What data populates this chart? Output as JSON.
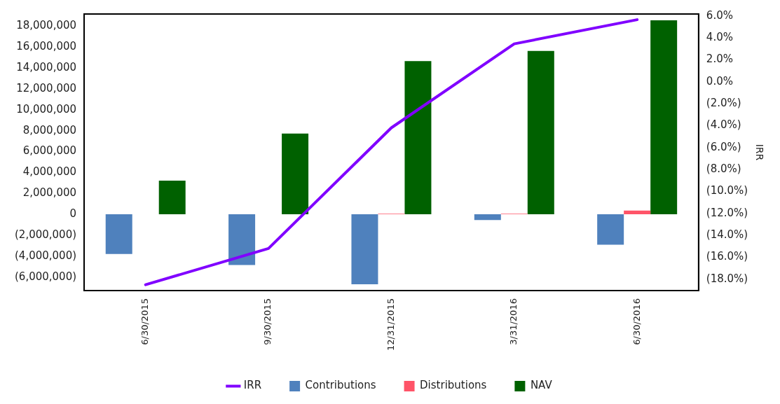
{
  "chart_data": {
    "type": "bar",
    "y2label": "IRR",
    "categories": [
      "6/30/2015",
      "9/30/2015",
      "12/31/2015",
      "3/31/2016",
      "6/30/2016"
    ],
    "series": [
      {
        "name": "Contributions",
        "color": "#4f81bd",
        "values": [
          -3800000,
          -4850000,
          -6700000,
          -550000,
          -2900000
        ]
      },
      {
        "name": "Distributions",
        "color": "#ff5468",
        "values": [
          0,
          0,
          50000,
          50000,
          350000
        ]
      },
      {
        "name": "NAV",
        "color": "#006100",
        "values": [
          3220000,
          7720000,
          14660000,
          15630000,
          18550000
        ]
      },
      {
        "name": "IRR",
        "type": "line",
        "axis": "y2",
        "color": "#8000ff",
        "values": [
          -18.5,
          -15.2,
          -4.2,
          3.45,
          5.65
        ]
      }
    ],
    "ylim": [
      -7300000,
      19160000
    ],
    "yticks": [
      {
        "value": -6000000,
        "label": "(6,000,000)"
      },
      {
        "value": -4000000,
        "label": "(4,000,000)"
      },
      {
        "value": -2000000,
        "label": "(2,000,000)"
      },
      0,
      {
        "value": 2000000,
        "label": "2,000,000"
      },
      {
        "value": 4000000,
        "label": "4,000,000"
      },
      {
        "value": 6000000,
        "label": "6,000,000"
      },
      {
        "value": 8000000,
        "label": "8,000,000"
      },
      {
        "value": 10000000,
        "label": "10,000,000"
      },
      {
        "value": 12000000,
        "label": "12,000,000"
      },
      {
        "value": 14000000,
        "label": "14,000,000"
      },
      {
        "value": 16000000,
        "label": "16,000,000"
      },
      {
        "value": 18000000,
        "label": "18,000,000"
      }
    ],
    "y2lim": [
      -19.04,
      6.17
    ],
    "y2ticks": [
      {
        "value": -18,
        "label": "(18.0%)"
      },
      {
        "value": -16,
        "label": "(16.0%)"
      },
      {
        "value": -14,
        "label": "(14.0%)"
      },
      {
        "value": -12,
        "label": "(12.0%)"
      },
      {
        "value": -10,
        "label": "(10.0%)"
      },
      {
        "value": -8,
        "label": "(8.0%)"
      },
      {
        "value": -6,
        "label": "(6.0%)"
      },
      {
        "value": -4,
        "label": "(4.0%)"
      },
      {
        "value": -2,
        "label": "(2.0%)"
      },
      {
        "value": 0,
        "label": "0.0%"
      },
      {
        "value": 2,
        "label": "2.0%"
      },
      {
        "value": 4,
        "label": "4.0%"
      },
      {
        "value": 6,
        "label": "6.0%"
      }
    ],
    "grid": false,
    "legend": "bottom",
    "marker": "none",
    "line_style": "solid"
  }
}
